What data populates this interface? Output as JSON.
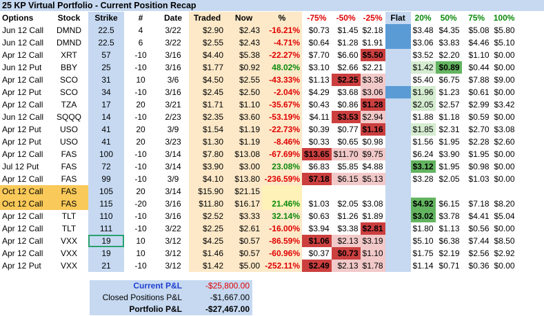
{
  "title": "25 KP Virtual Portfolio - Current Position Recap",
  "headers": {
    "options": "Options",
    "stock": "Stock",
    "strike": "Strike",
    "num": "#",
    "date": "Date",
    "traded": "Traded",
    "now": "Now",
    "pct": "%",
    "m75": "-75%",
    "m50": "-50%",
    "m25": "-25%",
    "flat": "Flat",
    "p20": "20%",
    "p50": "50%",
    "p75": "75%",
    "p100": "100%"
  },
  "rows": [
    {
      "options": "Jun 12 Call",
      "stock": "DMND",
      "strike": "22.5",
      "num": "4",
      "date": "3/22",
      "traded": "$2.90",
      "now": "$2.43",
      "pct": "-16.21%",
      "m75": "$0.73",
      "m50": "$1.45",
      "m25": "$2.18",
      "p20": "$3.48",
      "p50": "$4.35",
      "p75": "$5.08",
      "p100": "$5.80"
    },
    {
      "options": "Jun 12 Call",
      "stock": "DMND",
      "strike": "22.5",
      "num": "6",
      "date": "3/22",
      "traded": "$2.55",
      "now": "$2.43",
      "pct": "-4.71%",
      "m75": "$0.64",
      "m50": "$1.28",
      "m25": "$1.91",
      "p20": "$3.06",
      "p50": "$3.83",
      "p75": "$4.46",
      "p100": "$5.10"
    },
    {
      "options": "Apr 12 Call",
      "stock": "XRT",
      "strike": "57",
      "num": "-10",
      "date": "3/16",
      "traded": "$4.40",
      "now": "$5.38",
      "pct": "-22.27%",
      "m75": "$7.70",
      "m50": "$6.60",
      "m25": "$5.50",
      "p20": "$3.52",
      "p50": "$2.20",
      "p75": "$1.10",
      "p100": "$0.00"
    },
    {
      "options": "Jun 12 Put",
      "stock": "BBY",
      "strike": "25",
      "num": "-10",
      "date": "3/16",
      "traded": "$1.77",
      "now": "$0.92",
      "pct": "48.02%",
      "m75": "$3.10",
      "m50": "$2.66",
      "m25": "$2.21",
      "p20": "$1.42",
      "p50": "$0.89",
      "p75": "$0.44",
      "p100": "$0.00"
    },
    {
      "options": "Apr 12 Call",
      "stock": "SCO",
      "strike": "31",
      "num": "10",
      "date": "3/6",
      "traded": "$4.50",
      "now": "$2.55",
      "pct": "-43.33%",
      "m75": "$1.13",
      "m50": "$2.25",
      "m25": "$3.38",
      "p20": "$5.40",
      "p50": "$6.75",
      "p75": "$7.88",
      "p100": "$9.00"
    },
    {
      "options": "Apr 12 Put",
      "stock": "SCO",
      "strike": "34",
      "num": "-10",
      "date": "3/16",
      "traded": "$2.45",
      "now": "$2.50",
      "pct": "-2.04%",
      "m75": "$4.29",
      "m50": "$3.68",
      "m25": "$3.06",
      "p20": "$1.96",
      "p50": "$1.23",
      "p75": "$0.61",
      "p100": "$0.00"
    },
    {
      "options": "Apr 12 Call",
      "stock": "TZA",
      "strike": "17",
      "num": "20",
      "date": "3/21",
      "traded": "$1.71",
      "now": "$1.10",
      "pct": "-35.67%",
      "m75": "$0.43",
      "m50": "$0.86",
      "m25": "$1.28",
      "p20": "$2.05",
      "p50": "$2.57",
      "p75": "$2.99",
      "p100": "$3.42"
    },
    {
      "options": "Jun 12 Call",
      "stock": "SQQQ",
      "strike": "14",
      "num": "-10",
      "date": "2/23",
      "traded": "$2.35",
      "now": "$3.60",
      "pct": "-53.19%",
      "m75": "$4.11",
      "m50": "$3.53",
      "m25": "$2.94",
      "p20": "$1.88",
      "p50": "$1.18",
      "p75": "$0.59",
      "p100": "$0.00"
    },
    {
      "options": "Apr 12 Put",
      "stock": "USO",
      "strike": "41",
      "num": "20",
      "date": "3/9",
      "traded": "$1.54",
      "now": "$1.19",
      "pct": "-22.73%",
      "m75": "$0.39",
      "m50": "$0.77",
      "m25": "$1.16",
      "p20": "$1.85",
      "p50": "$2.31",
      "p75": "$2.70",
      "p100": "$3.08"
    },
    {
      "options": "Apr 12 Put",
      "stock": "USO",
      "strike": "41",
      "num": "20",
      "date": "3/23",
      "traded": "$1.30",
      "now": "$1.19",
      "pct": "-8.46%",
      "m75": "$0.33",
      "m50": "$0.65",
      "m25": "$0.98",
      "p20": "$1.56",
      "p50": "$1.95",
      "p75": "$2.28",
      "p100": "$2.60"
    },
    {
      "options": "Apr 12 Call",
      "stock": "FAS",
      "strike": "100",
      "num": "-10",
      "date": "3/14",
      "traded": "$7.80",
      "now": "$13.08",
      "pct": "-67.69%",
      "m75": "$13.65",
      "m50": "$11.70",
      "m25": "$9.75",
      "p20": "$6.24",
      "p50": "$3.90",
      "p75": "$1.95",
      "p100": "$0.00"
    },
    {
      "options": "Jul 12 Put",
      "stock": "FAS",
      "strike": "72",
      "num": "-10",
      "date": "3/14",
      "traded": "$3.90",
      "now": "$3.00",
      "pct": "23.08%",
      "m75": "$6.83",
      "m50": "$5.85",
      "m25": "$4.88",
      "p20": "$3.12",
      "p50": "$1.95",
      "p75": "$0.98",
      "p100": "$0.00"
    },
    {
      "options": "Apr 12 Call",
      "stock": "FAS",
      "strike": "99",
      "num": "-10",
      "date": "3/9",
      "traded": "$4.10",
      "now": "$13.80",
      "pct": "-236.59%",
      "m75": "$7.18",
      "m50": "$6.15",
      "m25": "$5.13",
      "p20": "$3.28",
      "p50": "$2.05",
      "p75": "$1.03",
      "p100": "$0.00"
    },
    {
      "options": "Oct 12 Call",
      "stock": "FAS",
      "strike": "105",
      "num": "20",
      "date": "3/14",
      "traded": "$15.90",
      "now": "$21.15",
      "pct": "",
      "m75": "",
      "m50": "",
      "m25": "",
      "p20": "",
      "p50": "",
      "p75": "",
      "p100": ""
    },
    {
      "options": "Oct 12 Call",
      "stock": "FAS",
      "strike": "115",
      "num": "-20",
      "date": "3/16",
      "traded": "$11.80",
      "now": "$16.17",
      "pct": "21.46%",
      "m75": "$1.03",
      "m50": "$2.05",
      "m25": "$3.08",
      "p20": "$4.92",
      "p50": "$6.15",
      "p75": "$7.18",
      "p100": "$8.20"
    },
    {
      "options": "Apr 12 Call",
      "stock": "TLT",
      "strike": "110",
      "num": "-10",
      "date": "3/16",
      "traded": "$2.52",
      "now": "$3.33",
      "pct": "32.14%",
      "m75": "$0.63",
      "m50": "$1.26",
      "m25": "$1.89",
      "p20": "$3.02",
      "p50": "$3.78",
      "p75": "$4.41",
      "p100": "$5.04"
    },
    {
      "options": "Apr 12 Call",
      "stock": "TLT",
      "strike": "111",
      "num": "-10",
      "date": "3/22",
      "traded": "$2.25",
      "now": "$2.61",
      "pct": "-16.00%",
      "m75": "$3.94",
      "m50": "$3.38",
      "m25": "$2.81",
      "p20": "$1.80",
      "p50": "$1.13",
      "p75": "$0.56",
      "p100": "$0.00"
    },
    {
      "options": "Apr 12 Call",
      "stock": "VXX",
      "strike": "19",
      "num": "10",
      "date": "3/12",
      "traded": "$4.25",
      "now": "$0.57",
      "pct": "-86.59%",
      "m75": "$1.06",
      "m50": "$2.13",
      "m25": "$3.19",
      "p20": "$5.10",
      "p50": "$6.38",
      "p75": "$7.44",
      "p100": "$8.50"
    },
    {
      "options": "Apr 12 Call",
      "stock": "VXX",
      "strike": "19",
      "num": "10",
      "date": "3/12",
      "traded": "$1.46",
      "now": "$0.57",
      "pct": "-60.96%",
      "m75": "$0.37",
      "m50": "$0.73",
      "m25": "$1.10",
      "p20": "$1.75",
      "p50": "$2.19",
      "p75": "$2.56",
      "p100": "$2.92"
    },
    {
      "options": "Apr 12 Put",
      "stock": "VXX",
      "strike": "21",
      "num": "-10",
      "date": "3/12",
      "traded": "$1.42",
      "now": "$5.00",
      "pct": "-252.11%",
      "m75": "$2.49",
      "m50": "$2.13",
      "m25": "$1.78",
      "p20": "$1.14",
      "p50": "$0.71",
      "p75": "$0.36",
      "p100": "$0.00"
    }
  ],
  "pl": {
    "current_label": "Current P&L",
    "current_value": "-$25,800.00",
    "closed_label": "Closed Positions P&L",
    "closed_value": "-$1,667.00",
    "portfolio_label": "Portfolio P&L",
    "portfolio_value": "-$27,467.00"
  },
  "colors": {
    "header_bg": "#c6d9f1",
    "tan": "#fde9c8",
    "positive": "#0a8a0a",
    "negative": "#e00000",
    "highlight_dark_red": "#cc3f3f",
    "highlight_light_red": "#f2c9c9",
    "highlight_green": "#63b460",
    "highlight_light_green": "#d5ecd0",
    "flat_blue": "#5b9bd5",
    "selected_yellow": "#f9c959"
  }
}
